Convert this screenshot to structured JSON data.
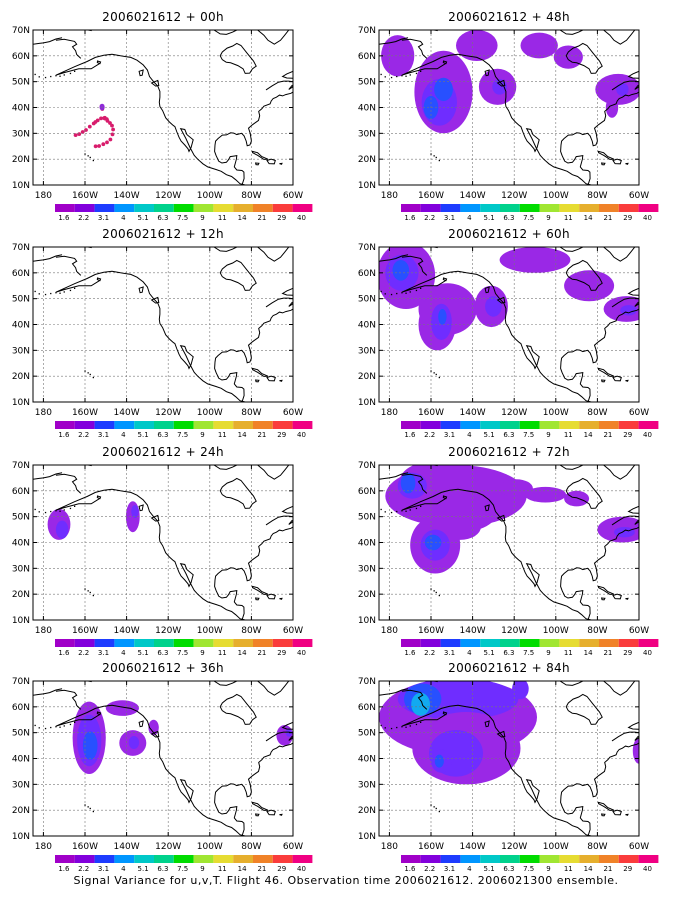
{
  "panels": [
    {
      "title": "2006021612 + 00h"
    },
    {
      "title": "2006021612 + 48h"
    },
    {
      "title": "2006021612 + 12h"
    },
    {
      "title": "2006021612 + 60h"
    },
    {
      "title": "2006021612 + 24h"
    },
    {
      "title": "2006021612 + 72h"
    },
    {
      "title": "2006021612 + 36h"
    },
    {
      "title": "2006021612 + 84h"
    }
  ],
  "axes": {
    "lon_labels": [
      "180",
      "160W",
      "140W",
      "120W",
      "100W",
      "80W",
      "60W"
    ],
    "lat_labels": [
      "70N",
      "60N",
      "50N",
      "40N",
      "30N",
      "20N",
      "10N"
    ]
  },
  "colorbar": {
    "labels": [
      "1.6",
      "2.2",
      "3.1",
      "4",
      "5.1",
      "6.3",
      "7.5",
      "9",
      "11",
      "14",
      "21",
      "29",
      "40"
    ],
    "colors": [
      "#a000c8",
      "#8200dc",
      "#1e3cff",
      "#0096ff",
      "#00c8c8",
      "#00d28c",
      "#00dc00",
      "#a0e632",
      "#e6dc32",
      "#e6af2d",
      "#f08228",
      "#fa3c3c",
      "#f00082"
    ]
  },
  "caption": "Signal Variance for u,v,T. Flight 46. Observation time 2006021612. 2006021300 ensemble."
}
